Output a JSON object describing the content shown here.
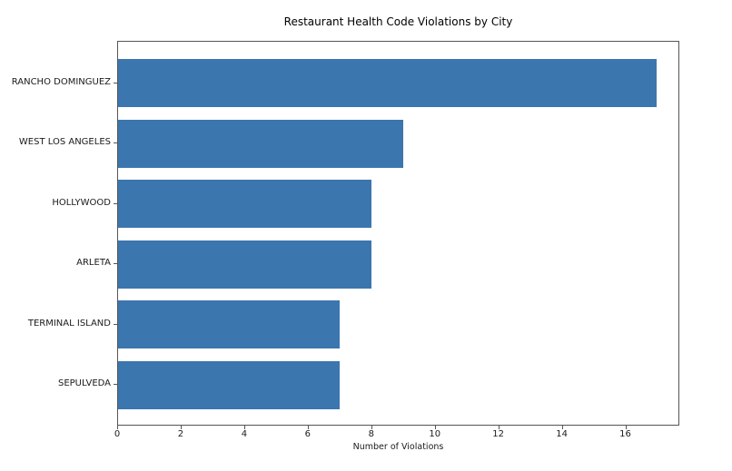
{
  "figure": {
    "background": "#ffffff",
    "spine_color": "#555555",
    "text_color": "#1a1a1a"
  },
  "chart_data": {
    "type": "bar",
    "orientation": "horizontal",
    "title": "Restaurant Health Code Violations by City",
    "categories": [
      "RANCHO DOMINGUEZ",
      "WEST LOS ANGELES",
      "HOLLYWOOD",
      "ARLETA",
      "TERMINAL ISLAND",
      "SEPULVEDA"
    ],
    "values": [
      17,
      9,
      8,
      8,
      7,
      7
    ],
    "xlabel": "Number of Violations",
    "ylabel": "",
    "xlim": [
      0,
      17.7
    ],
    "xticks": [
      0,
      2,
      4,
      6,
      8,
      10,
      12,
      14,
      16
    ],
    "bar_color": "#3b76af",
    "grid": false,
    "legend_position": "none"
  }
}
